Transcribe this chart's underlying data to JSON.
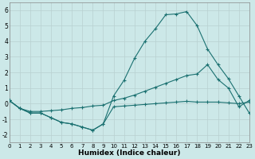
{
  "xlabel": "Humidex (Indice chaleur)",
  "bg_color": "#cce8e8",
  "line_color": "#1a7070",
  "grid_color": "#b8d0d0",
  "xlim": [
    0,
    23
  ],
  "ylim": [
    -2.5,
    6.5
  ],
  "xticks": [
    0,
    1,
    2,
    3,
    4,
    5,
    6,
    7,
    8,
    9,
    10,
    11,
    12,
    13,
    14,
    15,
    16,
    17,
    18,
    19,
    20,
    21,
    22,
    23
  ],
  "yticks": [
    -2,
    -1,
    0,
    1,
    2,
    3,
    4,
    5,
    6
  ],
  "line1_x": [
    0,
    1,
    2,
    3,
    4,
    5,
    6,
    7,
    8,
    9,
    10,
    11,
    12,
    13,
    14,
    15,
    16,
    17,
    18,
    19,
    20,
    21,
    22,
    23
  ],
  "line1_y": [
    0.2,
    -0.3,
    -0.6,
    -0.6,
    -0.9,
    -1.2,
    -1.3,
    -1.5,
    -1.7,
    -1.3,
    0.5,
    1.5,
    2.9,
    4.0,
    4.8,
    5.7,
    5.75,
    5.9,
    5.0,
    3.5,
    2.5,
    1.6,
    0.5,
    -0.6
  ],
  "line2_x": [
    0,
    1,
    2,
    3,
    4,
    5,
    6,
    7,
    8,
    9,
    10,
    11,
    12,
    13,
    14,
    15,
    16,
    17,
    18,
    19,
    20,
    21,
    22,
    23
  ],
  "line2_y": [
    0.2,
    -0.3,
    -0.6,
    -0.6,
    -0.9,
    -1.2,
    -1.3,
    -1.5,
    -1.7,
    -1.3,
    -0.2,
    -0.15,
    -0.1,
    -0.05,
    0.0,
    0.05,
    0.1,
    0.15,
    0.1,
    0.1,
    0.1,
    0.05,
    0.0,
    0.1
  ],
  "line3_x": [
    0,
    1,
    2,
    3,
    4,
    5,
    6,
    7,
    8,
    9,
    10,
    11,
    12,
    13,
    14,
    15,
    16,
    17,
    18,
    19,
    20,
    21,
    22,
    23
  ],
  "line3_y": [
    0.2,
    -0.3,
    -0.5,
    -0.5,
    -0.45,
    -0.4,
    -0.3,
    -0.25,
    -0.15,
    -0.1,
    0.2,
    0.35,
    0.55,
    0.8,
    1.05,
    1.3,
    1.55,
    1.8,
    1.9,
    2.5,
    1.55,
    1.0,
    -0.2,
    0.2
  ],
  "xtick_fontsize": 5.0,
  "ytick_fontsize": 5.5,
  "xlabel_fontsize": 6.5
}
